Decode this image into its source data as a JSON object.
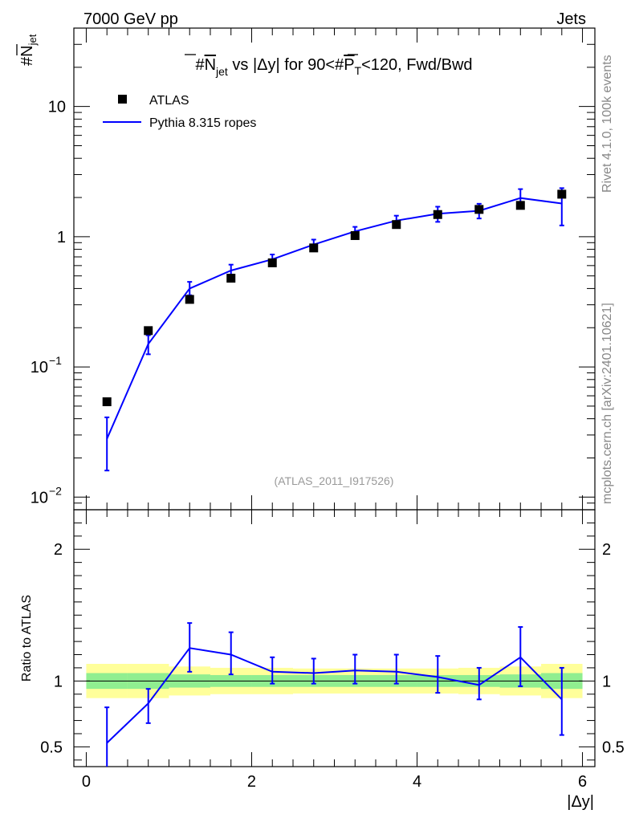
{
  "header": {
    "left": "7000 GeV pp",
    "right": "Jets",
    "side_rivet": "Rivet 4.1.0,  100k events",
    "side_mcplots": "mcplots.cern.ch [arXiv:2401.10621]"
  },
  "chart_data": [
    {
      "type": "scatter",
      "panel": "main",
      "title": "#N_jet vs |Δy| for 90<#P_T<120, Fwd/Bwd",
      "title_parts": {
        "p1": "#",
        "p2": "N",
        "p3": "jet",
        "p4": " vs |Δy| for 90<#",
        "p5": "P",
        "p6": "T",
        "p7": "<120, Fwd/Bwd"
      },
      "ylabel": "#N_jet",
      "ylabel_parts": {
        "hash": "#",
        "n": "N",
        "sub": "jet"
      },
      "xlabel": "|Δy|",
      "yscale": "log",
      "xlim": [
        -0.15,
        6.15
      ],
      "ylim": [
        0.008,
        40
      ],
      "yticks": [
        {
          "value": 0.01,
          "base": "10",
          "exp": "−2"
        },
        {
          "value": 0.1,
          "base": "10",
          "exp": "−1"
        },
        {
          "value": 1,
          "label": "1"
        },
        {
          "value": 10,
          "label": "10"
        }
      ],
      "watermark": "(ATLAS_2011_I917526)",
      "legend": {
        "placement": "top-left",
        "data_label": "ATLAS",
        "mc_label": "Pythia 8.315 ropes"
      },
      "x": [
        0.25,
        0.75,
        1.25,
        1.75,
        2.25,
        2.75,
        3.25,
        3.75,
        4.25,
        4.75,
        5.25,
        5.75
      ],
      "series": [
        {
          "name": "ATLAS",
          "style": "markers",
          "values": [
            0.054,
            0.19,
            0.33,
            0.48,
            0.63,
            0.82,
            1.02,
            1.24,
            1.48,
            1.62,
            1.74,
            2.12
          ]
        },
        {
          "name": "Pythia 8.315 ropes",
          "style": "line",
          "color": "#0000ff",
          "values": [
            0.028,
            0.15,
            0.4,
            0.55,
            0.67,
            0.87,
            1.1,
            1.33,
            1.5,
            1.58,
            1.98,
            1.8
          ],
          "err_low": [
            0.016,
            0.125,
            0.355,
            0.51,
            0.62,
            0.8,
            1.02,
            1.22,
            1.3,
            1.38,
            1.7,
            1.22
          ],
          "err_high": [
            0.041,
            0.175,
            0.45,
            0.61,
            0.73,
            0.95,
            1.19,
            1.45,
            1.7,
            1.79,
            2.32,
            2.36
          ]
        }
      ]
    },
    {
      "type": "line",
      "panel": "ratio",
      "ylabel": "Ratio to ATLAS",
      "xlabel": "|Δy|",
      "xlim": [
        -0.15,
        6.15
      ],
      "ylim": [
        0.35,
        2.3
      ],
      "xticks": [
        0,
        2,
        4,
        6
      ],
      "xtick_labels": [
        "0",
        "2",
        "4",
        "6"
      ],
      "yticks": [
        0.5,
        1,
        2
      ],
      "ytick_labels": [
        "0.5",
        "1",
        "2"
      ],
      "x": [
        0.25,
        0.75,
        1.25,
        1.75,
        2.25,
        2.75,
        3.25,
        3.75,
        4.25,
        4.75,
        5.25,
        5.75
      ],
      "bin_edges": [
        0,
        0.5,
        1,
        1.5,
        2,
        2.5,
        3,
        3.5,
        4,
        4.5,
        5,
        5.5,
        6
      ],
      "band_colors": {
        "stat": "#90ee90",
        "total": "#ffff9a"
      },
      "band_stat": {
        "low": [
          0.94,
          0.94,
          0.95,
          0.955,
          0.955,
          0.955,
          0.955,
          0.955,
          0.955,
          0.955,
          0.95,
          0.94
        ],
        "high": [
          1.06,
          1.06,
          1.05,
          1.045,
          1.045,
          1.045,
          1.045,
          1.045,
          1.045,
          1.045,
          1.05,
          1.06
        ]
      },
      "band_total": {
        "low": [
          0.87,
          0.87,
          0.89,
          0.9,
          0.9,
          0.905,
          0.905,
          0.905,
          0.905,
          0.9,
          0.89,
          0.87
        ],
        "high": [
          1.13,
          1.13,
          1.11,
          1.1,
          1.1,
          1.095,
          1.095,
          1.095,
          1.095,
          1.1,
          1.11,
          1.13
        ]
      },
      "series": [
        {
          "name": "Pythia 8.315 ropes",
          "color": "#0000ff",
          "values": [
            0.53,
            0.83,
            1.25,
            1.2,
            1.07,
            1.06,
            1.08,
            1.07,
            1.03,
            0.97,
            1.18,
            0.86
          ],
          "err_low": [
            0.3,
            0.68,
            1.07,
            1.05,
            0.98,
            0.98,
            0.98,
            0.98,
            0.91,
            0.86,
            0.96,
            0.59
          ],
          "err_high": [
            0.8,
            0.94,
            1.44,
            1.37,
            1.18,
            1.17,
            1.2,
            1.2,
            1.19,
            1.1,
            1.41,
            1.1
          ]
        }
      ]
    }
  ]
}
